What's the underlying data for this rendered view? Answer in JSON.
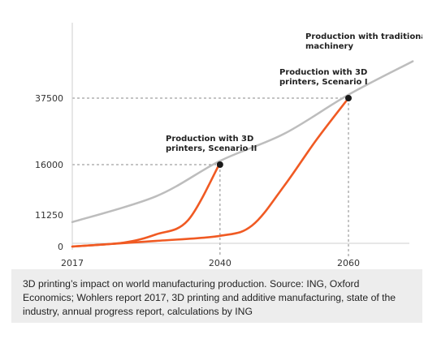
{
  "chart_data": {
    "type": "line",
    "x_ticks": [
      "2017",
      "2040",
      "2060"
    ],
    "y_ticks": [
      "0",
      "11250",
      "16000",
      "37500"
    ],
    "series": [
      {
        "name": "Production with traditional machinery",
        "color": "#bdbdbd",
        "points": [
          [
            2017,
            8700
          ],
          [
            2030,
            13000
          ],
          [
            2040,
            17200
          ],
          [
            2050,
            26000
          ],
          [
            2060,
            38600
          ],
          [
            2070,
            49400
          ]
        ]
      },
      {
        "name": "Production with 3D printers, Scenario II",
        "color": "#f05a23",
        "points": [
          [
            2017,
            0
          ],
          [
            2025,
            1400
          ],
          [
            2030,
            4300
          ],
          [
            2035,
            9300
          ],
          [
            2040,
            16600
          ]
        ]
      },
      {
        "name": "Production with 3D printers, Scenario I",
        "color": "#f05a23",
        "points": [
          [
            2017,
            0
          ],
          [
            2030,
            2000
          ],
          [
            2040,
            3800
          ],
          [
            2045,
            7500
          ],
          [
            2050,
            14000
          ],
          [
            2055,
            24000
          ],
          [
            2060,
            37500
          ]
        ]
      }
    ],
    "annotations": [
      {
        "lines": [
          "Production with traditional",
          "machinery"
        ]
      },
      {
        "lines": [
          "Production with 3D",
          "printers, Scenario I"
        ]
      },
      {
        "lines": [
          "Production with 3D",
          "printers, Scenario II"
        ]
      }
    ],
    "reference_lines": [
      {
        "x": 2040,
        "y": 16000
      },
      {
        "x": 2060,
        "y": 37500
      }
    ]
  },
  "caption": "3D printing’s impact on world manufacturing production. Source: ING, Oxford Economics; Wohlers report 2017, 3D printing and additive manufacturing, state of the industry, annual progress report, calculations by ING"
}
